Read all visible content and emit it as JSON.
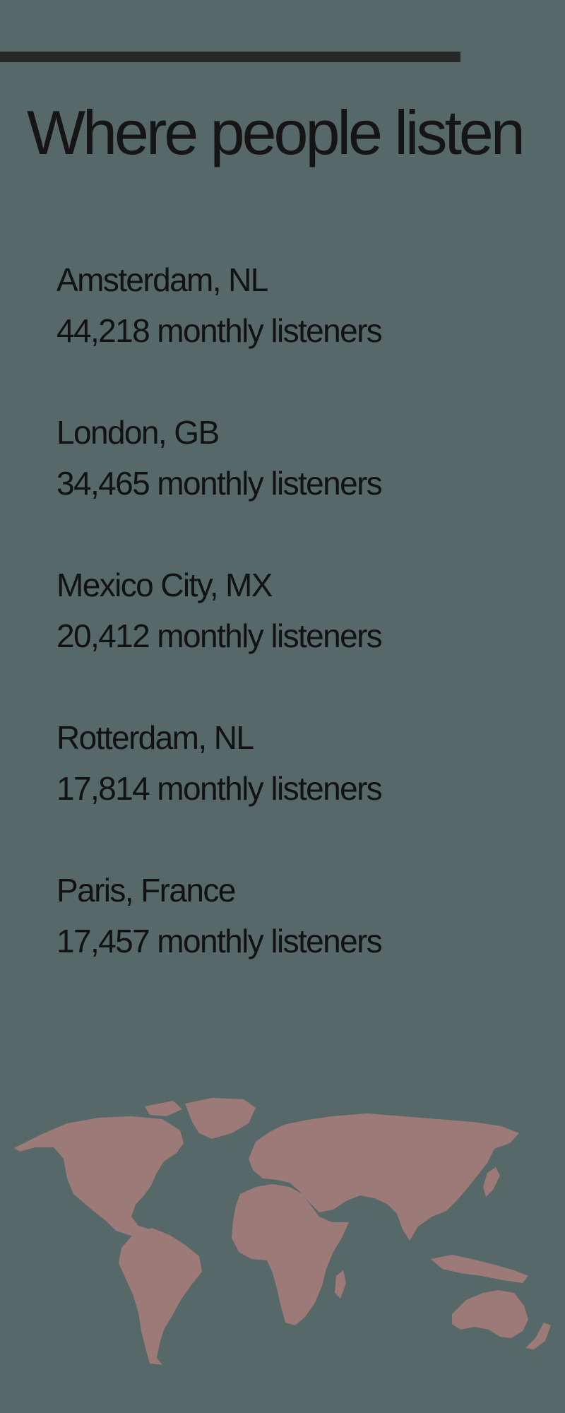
{
  "title": "Where people listen",
  "cities": [
    {
      "name": "Amsterdam, NL",
      "listeners": "44,218 monthly listeners"
    },
    {
      "name": "London, GB",
      "listeners": "34,465 monthly listeners"
    },
    {
      "name": "Mexico City, MX",
      "listeners": "20,412 monthly listeners"
    },
    {
      "name": "Rotterdam, NL",
      "listeners": "17,814 monthly listeners"
    },
    {
      "name": "Paris, France",
      "listeners": "17,457 monthly listeners"
    }
  ],
  "colors": {
    "background": "#566868",
    "top_rule": "#262828",
    "map": "#9c7a78",
    "text": "#121212"
  },
  "map_icon": "world-map-icon"
}
